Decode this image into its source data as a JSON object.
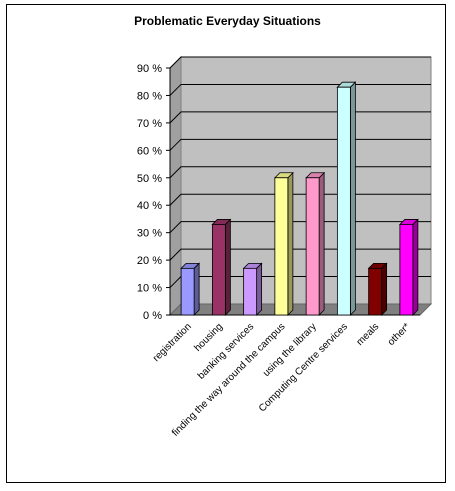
{
  "chart_data": {
    "type": "bar",
    "title": "Problematic Everyday Situations",
    "categories": [
      "registration",
      "housing",
      "banking services",
      "finding the way around the campus",
      "using the library",
      "Computing Centre services",
      "meals",
      "other*"
    ],
    "values": [
      17,
      33,
      17,
      50,
      50,
      83,
      17,
      33
    ],
    "unit": "%",
    "ylim": [
      0,
      90
    ],
    "ytick_labels": [
      "0 %",
      "10 %",
      "20 %",
      "30 %",
      "40 %",
      "50 %",
      "60 %",
      "70 %",
      "80 %",
      "90 %"
    ],
    "grid": true,
    "style": "3d",
    "colors": {
      "plot_background": "#c0c0c0",
      "gridlines": "#000000",
      "bars": [
        "#9999ff",
        "#993366",
        "#cc99ff",
        "#ffff99",
        "#ff99cc",
        "#ccffff",
        "#800000",
        "#ff00ff"
      ]
    }
  }
}
